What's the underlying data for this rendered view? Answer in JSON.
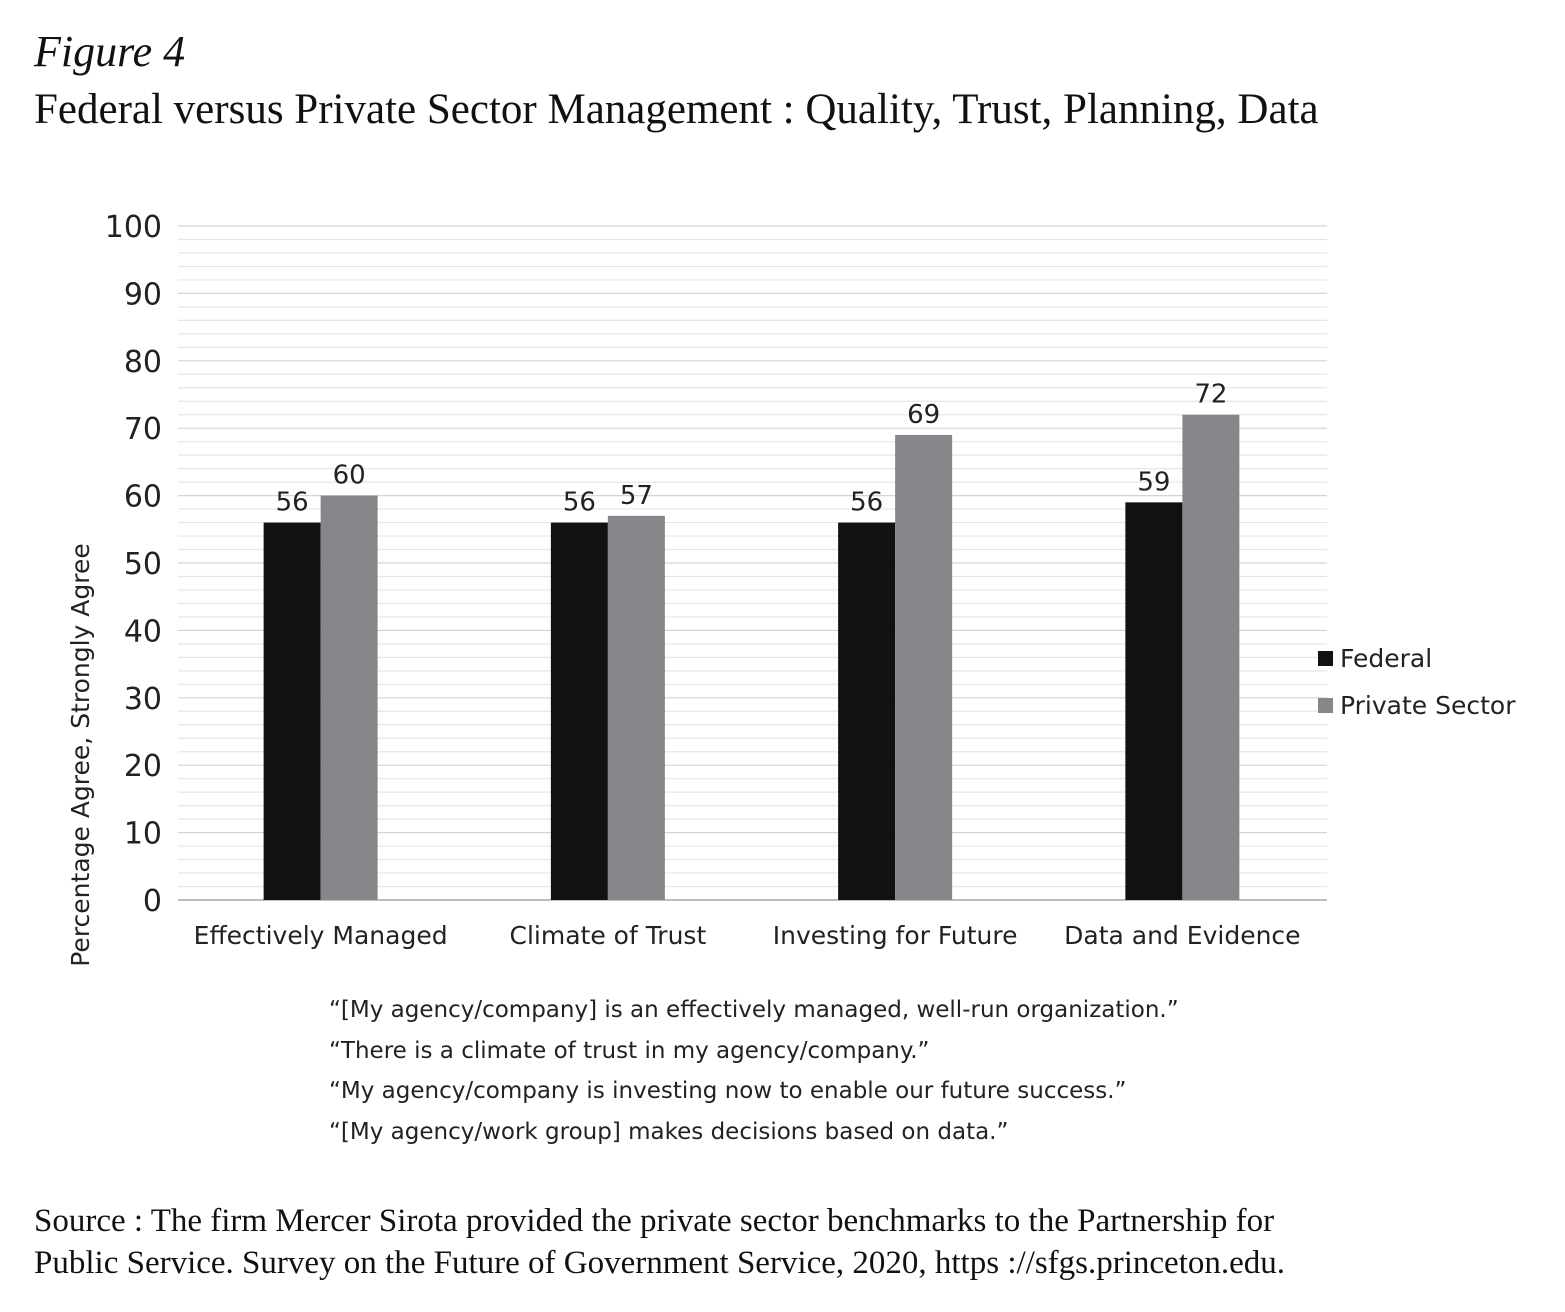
{
  "figure_label": "Figure 4",
  "title": "Federal versus Private Sector Management : Quality, Trust, Planning, Data",
  "chart_data": {
    "type": "bar",
    "categories": [
      "Effectively Managed",
      "Climate of Trust",
      "Investing for Future",
      "Data and Evidence"
    ],
    "series": [
      {
        "name": "Federal",
        "values": [
          56,
          56,
          56,
          59
        ],
        "color": "#111111"
      },
      {
        "name": "Private Sector",
        "values": [
          60,
          57,
          69,
          72
        ],
        "color": "#86878a"
      }
    ],
    "ylabel": "Percentage Agree, Strongly Agree",
    "xlabel": "",
    "ylim": [
      0,
      100
    ],
    "yticks": [
      0,
      10,
      20,
      30,
      40,
      50,
      60,
      70,
      80,
      90,
      100
    ],
    "data_labels": true,
    "grid": true,
    "legend_position": "right"
  },
  "quotes": [
    "“[My agency/company] is an effectively managed, well-run organization.”",
    "“There is a climate of trust in my agency/company.”",
    "“My agency/company is investing now to enable our future success.”",
    "“[My agency/work group] makes decisions based on data.”"
  ],
  "source": [
    "Source : The firm Mercer Sirota provided the private sector benchmarks to the Partnership for",
    "Public Service. Survey on the Future of Government Service, 2020, https ://sfgs.princeton.edu."
  ]
}
